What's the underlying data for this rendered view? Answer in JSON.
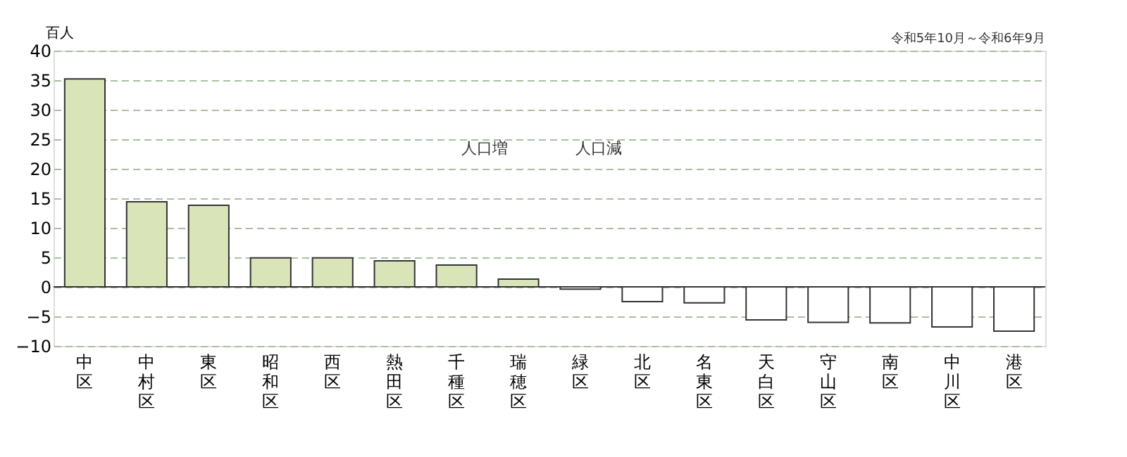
{
  "chart_data": {
    "type": "bar",
    "subtitle": "令和5年10月～令和6年9月",
    "ylabel": "百人",
    "categories": [
      "中区",
      "中村区",
      "東区",
      "昭和区",
      "西区",
      "熱田区",
      "千種区",
      "瑞穂区",
      "緑区",
      "北区",
      "名東区",
      "天白区",
      "守山区",
      "南区",
      "中川区",
      "港区"
    ],
    "values": [
      35.2,
      14.4,
      13.8,
      4.9,
      4.9,
      4.4,
      3.7,
      1.3,
      -0.4,
      -2.5,
      -2.7,
      -5.6,
      -6.0,
      -6.1,
      -6.8,
      -7.5
    ],
    "colors": [
      "#d9e5b8",
      "#d9e5b8",
      "#d9e5b8",
      "#d9e5b8",
      "#d9e5b8",
      "#d9e5b8",
      "#d9e5b8",
      "#d9e5b8",
      "#ffffff",
      "#ffffff",
      "#ffffff",
      "#ffffff",
      "#ffffff",
      "#ffffff",
      "#ffffff",
      "#ffffff"
    ],
    "ylim": [
      -10,
      40
    ],
    "yticks": [
      -10,
      -5,
      0,
      5,
      10,
      15,
      20,
      25,
      30,
      35,
      40
    ],
    "grid": "y",
    "annotations": [
      "人口増",
      "人口減"
    ]
  }
}
